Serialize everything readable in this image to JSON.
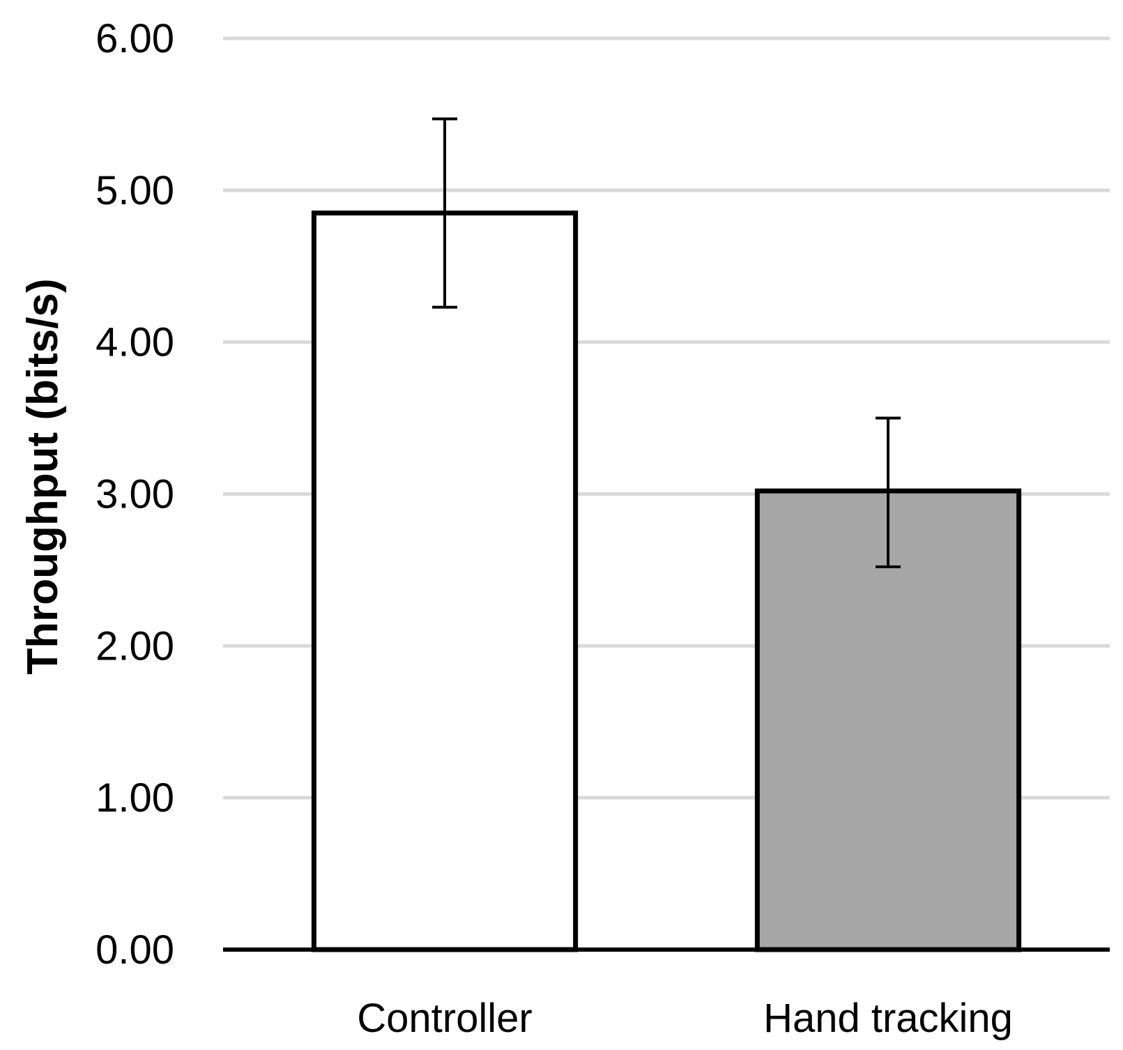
{
  "chart_data": {
    "type": "bar",
    "title": "",
    "xlabel": "",
    "ylabel": "Throughput (bits/s)",
    "ylim": [
      0,
      6
    ],
    "yticks": [
      0,
      1,
      2,
      3,
      4,
      5,
      6
    ],
    "ytick_labels": [
      "0.00",
      "1.00",
      "2.00",
      "3.00",
      "4.00",
      "5.00",
      "6.00"
    ],
    "grid": true,
    "categories": [
      "Controller",
      "Hand tracking"
    ],
    "values": [
      4.85,
      3.02
    ],
    "error_low": [
      4.23,
      2.52
    ],
    "error_high": [
      5.47,
      3.5
    ],
    "bar_colors": [
      "#ffffff",
      "#a6a6a6"
    ],
    "bar_edge_color": "#000000",
    "grid_color": "#d9d9d9"
  }
}
